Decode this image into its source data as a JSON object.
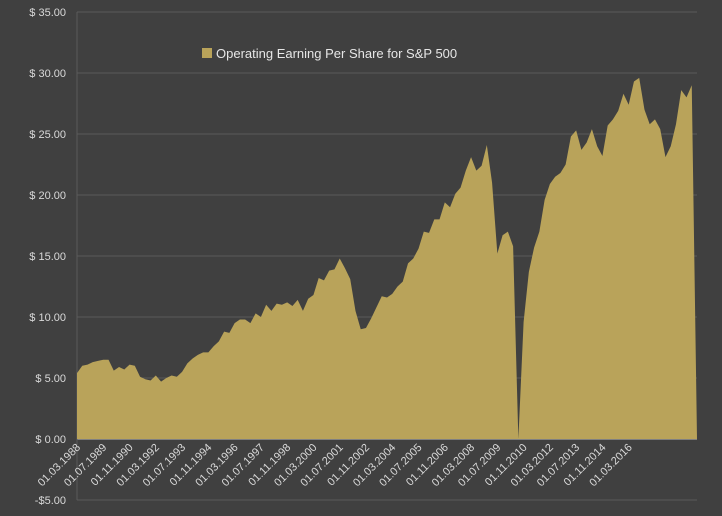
{
  "chart_data": {
    "type": "area",
    "title": "",
    "xlabel": "",
    "ylabel": "",
    "ylim": [
      -5,
      35
    ],
    "yticks": [
      {
        "value": 35,
        "label": "$ 35.00"
      },
      {
        "value": 30,
        "label": "$ 30.00"
      },
      {
        "value": 25,
        "label": "$ 25.00"
      },
      {
        "value": 20,
        "label": "$ 20.00"
      },
      {
        "value": 15,
        "label": "$ 15.00"
      },
      {
        "value": 10,
        "label": "$ 10.00"
      },
      {
        "value": 5,
        "label": "$ 5.00"
      },
      {
        "value": 0,
        "label": "$ 0.00"
      },
      {
        "value": -5,
        "label": "-$5.00"
      }
    ],
    "x_tick_labels": [
      "01.03.1988",
      "01.07.1989",
      "01.11.1990",
      "01.03.1992",
      "01.07.1993",
      "01.11.1994",
      "01.03.1996",
      "01.07.1997",
      "01.11.1998",
      "01.03.2000",
      "01.07.2001",
      "01.11.2002",
      "01.03.2004",
      "01.07.2005",
      "01.11.2006",
      "01.03.2008",
      "01.07.2009",
      "01.11.2010",
      "01.03.2012",
      "01.07.2013",
      "01.11.2014",
      "01.03.2016"
    ],
    "x_tick_index_step": 5,
    "grid": true,
    "legend_position": "top-left",
    "colors": {
      "area": "#b9a35a",
      "background": "#404040",
      "text": "#d9d9d9"
    },
    "series": [
      {
        "name": "Operating Earning Per Share for S&P 500",
        "values": [
          5.4,
          6.0,
          6.1,
          6.3,
          6.4,
          6.5,
          6.5,
          5.6,
          5.9,
          5.7,
          6.1,
          6.0,
          5.1,
          4.9,
          4.8,
          5.2,
          4.7,
          5.0,
          5.2,
          5.1,
          5.5,
          6.2,
          6.6,
          6.9,
          7.1,
          7.1,
          7.6,
          8.0,
          8.8,
          8.7,
          9.5,
          9.8,
          9.8,
          9.5,
          10.3,
          10.0,
          11.0,
          10.5,
          11.1,
          11.0,
          11.2,
          10.9,
          11.4,
          10.5,
          11.5,
          11.8,
          13.2,
          13.0,
          13.8,
          13.9,
          14.8,
          14.0,
          13.1,
          10.5,
          9.0,
          9.1,
          9.9,
          10.8,
          11.7,
          11.6,
          11.9,
          12.5,
          12.9,
          14.4,
          14.8,
          15.6,
          17.0,
          16.9,
          18.0,
          18.0,
          19.4,
          19.0,
          20.1,
          20.6,
          22.0,
          23.1,
          22.0,
          22.4,
          24.1,
          21.0,
          15.2,
          16.7,
          17.0,
          15.8,
          0.0,
          9.6,
          13.7,
          15.7,
          17.0,
          19.6,
          20.9,
          21.5,
          21.8,
          22.5,
          24.8,
          25.3,
          23.7,
          24.3,
          25.4,
          24.0,
          23.2,
          25.7,
          26.2,
          26.9,
          28.3,
          27.4,
          29.3,
          29.6,
          27.0,
          25.8,
          26.2,
          25.4,
          23.1,
          24.0,
          25.8,
          28.6,
          28.0,
          29.0,
          0.0
        ]
      }
    ]
  }
}
